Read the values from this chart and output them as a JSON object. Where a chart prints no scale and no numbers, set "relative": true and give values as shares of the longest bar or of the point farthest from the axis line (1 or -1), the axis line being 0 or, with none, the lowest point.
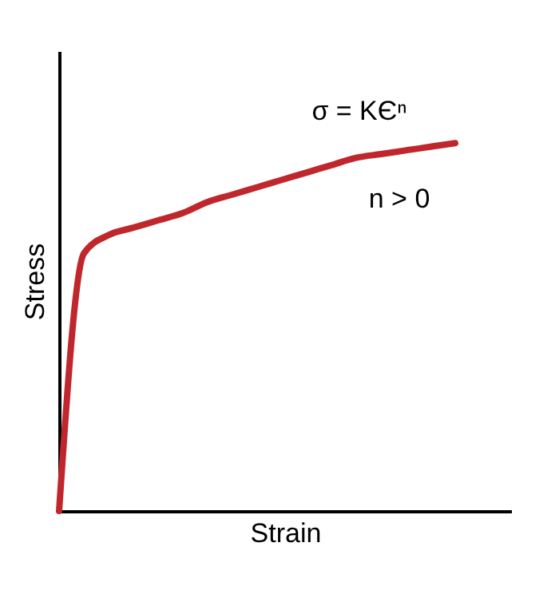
{
  "chart_data": {
    "type": "line",
    "relative": true,
    "xlabel": "Strain",
    "ylabel": "Stress",
    "categories": [
      null,
      null,
      null,
      null,
      null,
      null,
      null,
      null,
      null,
      null,
      null,
      null,
      null,
      null,
      null,
      null,
      null
    ],
    "series": [
      {
        "color": "#c0272d",
        "values": [
          0,
          0.7,
          0.75,
          0.77,
          0.79,
          0.81,
          0.84,
          0.86,
          0.88,
          0.9,
          0.92,
          0.94,
          0.96,
          0.97,
          0.98,
          0.99,
          1.0
        ]
      }
    ],
    "annotations": [
      "σ = KЄⁿ",
      "n > 0"
    ],
    "grid": false,
    "marker": "none",
    "line_style": "solid"
  }
}
